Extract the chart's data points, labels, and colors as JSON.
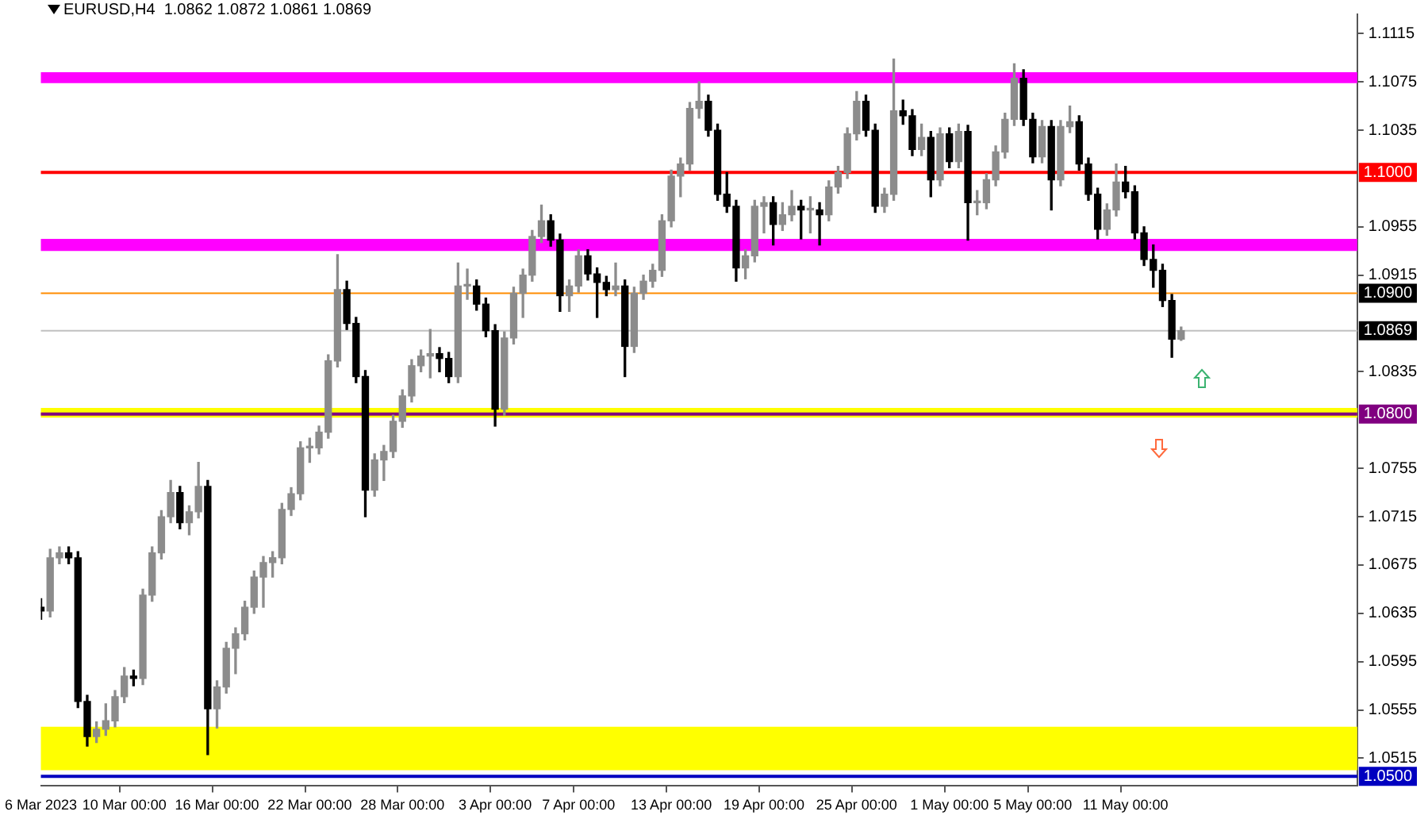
{
  "chart_data": {
    "type": "candlestick",
    "title": "EURUSD,H4  1.0862 1.0872 1.0861 1.0869",
    "categories": [
      "6 Mar 2023",
      null,
      null,
      null,
      null,
      null,
      null,
      null,
      null,
      "10 Mar 00:00",
      null,
      null,
      null,
      null,
      null,
      null,
      null,
      null,
      null,
      "16 Mar 00:00",
      null,
      null,
      null,
      null,
      null,
      null,
      null,
      null,
      null,
      "22 Mar 00:00",
      null,
      null,
      null,
      null,
      null,
      null,
      null,
      null,
      null,
      "28 Mar 00:00",
      null,
      null,
      null,
      null,
      null,
      null,
      null,
      null,
      null,
      "3 Apr 00:00",
      null,
      null,
      null,
      null,
      null,
      null,
      null,
      null,
      "7 Apr 00:00",
      null,
      null,
      null,
      null,
      null,
      null,
      null,
      null,
      null,
      "13 Apr 00:00",
      null,
      null,
      null,
      null,
      null,
      null,
      null,
      null,
      null,
      "19 Apr 00:00",
      null,
      null,
      null,
      null,
      null,
      null,
      null,
      null,
      null,
      "25 Apr 00:00",
      null,
      null,
      null,
      null,
      null,
      null,
      null,
      null,
      null,
      "1 May 00:00",
      null,
      null,
      null,
      null,
      null,
      null,
      null,
      null,
      "5 May 00:00",
      null,
      null,
      null,
      null,
      null,
      null,
      null,
      null,
      null,
      "11 May 00:00",
      null,
      null,
      null,
      null,
      null,
      null,
      null,
      null,
      null,
      null,
      null,
      null,
      null,
      null,
      null,
      null,
      null,
      null,
      null,
      null,
      null,
      null,
      null,
      null,
      null
    ],
    "ohlc": [
      [
        1.064,
        1.0647,
        1.063,
        1.0637
      ],
      [
        1.0637,
        1.0688,
        1.0632,
        1.0681
      ],
      [
        1.0681,
        1.069,
        1.0676,
        1.0685
      ],
      [
        1.0685,
        1.069,
        1.0676,
        1.0681
      ],
      [
        1.0681,
        1.0686,
        1.0557,
        1.0562
      ],
      [
        1.0562,
        1.0567,
        1.0525,
        1.0533
      ],
      [
        1.0533,
        1.0545,
        1.0528,
        1.0539
      ],
      [
        1.0539,
        1.056,
        1.0534,
        1.0546
      ],
      [
        1.0546,
        1.0571,
        1.0541,
        1.0566
      ],
      [
        1.0566,
        1.059,
        1.0561,
        1.0583
      ],
      [
        1.0583,
        1.0588,
        1.0575,
        1.0581
      ],
      [
        1.0581,
        1.0655,
        1.0576,
        1.065
      ],
      [
        1.065,
        1.069,
        1.0645,
        1.0685
      ],
      [
        1.0685,
        1.072,
        1.068,
        1.0715
      ],
      [
        1.0715,
        1.0745,
        1.071,
        1.0735
      ],
      [
        1.0735,
        1.074,
        1.0705,
        1.071
      ],
      [
        1.071,
        1.0724,
        1.07,
        1.0719
      ],
      [
        1.0719,
        1.076,
        1.0714,
        1.074
      ],
      [
        1.074,
        1.0745,
        1.0518,
        1.0556
      ],
      [
        1.0556,
        1.0579,
        1.054,
        1.0574
      ],
      [
        1.0574,
        1.0611,
        1.0569,
        1.0606
      ],
      [
        1.0606,
        1.0623,
        1.0585,
        1.0618
      ],
      [
        1.0618,
        1.0645,
        1.0613,
        1.064
      ],
      [
        1.064,
        1.067,
        1.0635,
        1.0665
      ],
      [
        1.0665,
        1.0682,
        1.064,
        1.0677
      ],
      [
        1.0677,
        1.0686,
        1.0665,
        1.0681
      ],
      [
        1.0681,
        1.0726,
        1.0676,
        1.0721
      ],
      [
        1.0721,
        1.0739,
        1.0716,
        1.0734
      ],
      [
        1.0734,
        1.0777,
        1.0729,
        1.0772
      ],
      [
        1.0772,
        1.078,
        1.076,
        1.0772
      ],
      [
        1.0772,
        1.079,
        1.0767,
        1.0785
      ],
      [
        1.0785,
        1.0849,
        1.078,
        1.0844
      ],
      [
        1.0844,
        1.0932,
        1.0839,
        1.0903
      ],
      [
        1.0903,
        1.091,
        1.087,
        1.0875
      ],
      [
        1.0875,
        1.088,
        1.0826,
        1.0831
      ],
      [
        1.0831,
        1.0836,
        1.0715,
        1.0737
      ],
      [
        1.0737,
        1.0767,
        1.0732,
        1.0762
      ],
      [
        1.0762,
        1.0774,
        1.0745,
        1.0769
      ],
      [
        1.0769,
        1.0799,
        1.0764,
        1.0794
      ],
      [
        1.0794,
        1.082,
        1.0789,
        1.0815
      ],
      [
        1.0815,
        1.0845,
        1.081,
        1.084
      ],
      [
        1.084,
        1.0853,
        1.0835,
        1.0848
      ],
      [
        1.0848,
        1.087,
        1.083,
        1.085
      ],
      [
        1.085,
        1.0855,
        1.0835,
        1.0846
      ],
      [
        1.0846,
        1.0851,
        1.0826,
        1.0831
      ],
      [
        1.0831,
        1.0925,
        1.0826,
        1.0906
      ],
      [
        1.0906,
        1.092,
        1.0895,
        1.0906
      ],
      [
        1.0906,
        1.0911,
        1.0886,
        1.0891
      ],
      [
        1.0891,
        1.0896,
        1.0864,
        1.0869
      ],
      [
        1.0869,
        1.0874,
        1.079,
        1.0804
      ],
      [
        1.0804,
        1.0868,
        1.0799,
        1.0863
      ],
      [
        1.0863,
        1.0905,
        1.0858,
        1.09
      ],
      [
        1.09,
        1.092,
        1.088,
        1.0915
      ],
      [
        1.0915,
        1.0952,
        1.091,
        1.0947
      ],
      [
        1.0947,
        1.0973,
        1.0942,
        1.096
      ],
      [
        1.096,
        1.0965,
        1.0939,
        1.0944
      ],
      [
        1.0944,
        1.0949,
        1.0885,
        1.0898
      ],
      [
        1.0898,
        1.0911,
        1.0885,
        1.0906
      ],
      [
        1.0906,
        1.0936,
        1.0901,
        1.0931
      ],
      [
        1.0931,
        1.0936,
        1.0911,
        1.0916
      ],
      [
        1.0916,
        1.0921,
        1.088,
        1.0909
      ],
      [
        1.0909,
        1.0914,
        1.0898,
        1.0903
      ],
      [
        1.0903,
        1.0925,
        1.0898,
        1.0906
      ],
      [
        1.0906,
        1.0911,
        1.0831,
        1.0856
      ],
      [
        1.0856,
        1.0905,
        1.0851,
        1.09
      ],
      [
        1.09,
        1.0915,
        1.0895,
        1.091
      ],
      [
        1.091,
        1.0924,
        1.0905,
        1.0919
      ],
      [
        1.0919,
        1.0965,
        1.0914,
        1.096
      ],
      [
        1.096,
        1.1002,
        1.0955,
        1.0997
      ],
      [
        1.0997,
        1.1012,
        1.098,
        1.1007
      ],
      [
        1.1007,
        1.1058,
        1.1002,
        1.1053
      ],
      [
        1.1053,
        1.1075,
        1.1045,
        1.1059
      ],
      [
        1.1059,
        1.1064,
        1.103,
        1.1035
      ],
      [
        1.1035,
        1.104,
        1.0977,
        1.0982
      ],
      [
        1.0982,
        1.1,
        1.0967,
        1.0972
      ],
      [
        1.0972,
        1.0977,
        1.091,
        1.0921
      ],
      [
        1.0921,
        1.0936,
        1.0912,
        1.0931
      ],
      [
        1.0931,
        1.0977,
        1.0926,
        1.0972
      ],
      [
        1.0972,
        1.098,
        1.095,
        1.0975
      ],
      [
        1.0975,
        1.098,
        1.094,
        1.0957
      ],
      [
        1.0957,
        1.0975,
        1.0952,
        1.0965
      ],
      [
        1.0965,
        1.0985,
        1.096,
        1.0972
      ],
      [
        1.0972,
        1.0977,
        1.0945,
        1.0969
      ],
      [
        1.0969,
        1.098,
        1.095,
        1.0969
      ],
      [
        1.0969,
        1.0975,
        1.094,
        1.0965
      ],
      [
        1.0965,
        1.0993,
        1.096,
        1.0988
      ],
      [
        1.0988,
        1.1005,
        1.0983,
        1.1
      ],
      [
        1.1,
        1.1037,
        1.0995,
        1.1032
      ],
      [
        1.1032,
        1.1067,
        1.1027,
        1.1059
      ],
      [
        1.1059,
        1.1064,
        1.103,
        1.1035
      ],
      [
        1.1035,
        1.104,
        1.0967,
        1.0972
      ],
      [
        1.0972,
        1.0987,
        1.0967,
        1.0982
      ],
      [
        1.0982,
        1.1094,
        1.0977,
        1.1051
      ],
      [
        1.1051,
        1.106,
        1.104,
        1.1047
      ],
      [
        1.1047,
        1.1052,
        1.1014,
        1.1019
      ],
      [
        1.1019,
        1.104,
        1.1014,
        1.1029
      ],
      [
        1.1029,
        1.1034,
        1.098,
        1.0994
      ],
      [
        1.0994,
        1.1037,
        1.0989,
        1.1032
      ],
      [
        1.1032,
        1.1037,
        1.1004,
        1.1009
      ],
      [
        1.1009,
        1.104,
        1.1004,
        1.1034
      ],
      [
        1.1034,
        1.1039,
        1.0944,
        1.0975
      ],
      [
        1.0975,
        1.0985,
        1.0965,
        1.0975
      ],
      [
        1.0975,
        1.0999,
        1.097,
        1.0994
      ],
      [
        1.0994,
        1.1022,
        1.0989,
        1.1017
      ],
      [
        1.1017,
        1.1049,
        1.1012,
        1.1044
      ],
      [
        1.1044,
        1.109,
        1.1039,
        1.1078
      ],
      [
        1.1078,
        1.1085,
        1.1039,
        1.1044
      ],
      [
        1.1044,
        1.1049,
        1.1008,
        1.1013
      ],
      [
        1.1013,
        1.1043,
        1.1008,
        1.1038
      ],
      [
        1.1038,
        1.1043,
        1.0969,
        1.0994
      ],
      [
        1.0994,
        1.1043,
        1.0989,
        1.1038
      ],
      [
        1.1038,
        1.1055,
        1.1033,
        1.1042
      ],
      [
        1.1042,
        1.1047,
        1.1002,
        1.1007
      ],
      [
        1.1007,
        1.1012,
        1.0977,
        1.0982
      ],
      [
        1.0982,
        1.0987,
        1.0945,
        1.0953
      ],
      [
        1.0953,
        1.0974,
        1.0948,
        1.0969
      ],
      [
        1.0969,
        1.1007,
        1.0964,
        1.0992
      ],
      [
        1.0992,
        1.1005,
        1.0979,
        1.0984
      ],
      [
        1.0984,
        1.0989,
        1.0945,
        1.095
      ],
      [
        1.095,
        1.0955,
        1.0923,
        1.0928
      ],
      [
        1.0928,
        1.094,
        1.0905,
        1.0919
      ],
      [
        1.0919,
        1.0924,
        1.0889,
        1.0894
      ],
      [
        1.0894,
        1.0899,
        1.0847,
        1.0862
      ],
      [
        1.0862,
        1.0872,
        1.0861,
        1.0869
      ],
      null,
      null,
      null,
      null,
      null,
      null,
      null,
      null,
      null,
      null,
      null,
      null,
      null,
      null,
      null,
      null,
      null,
      null,
      null
    ],
    "colors": [
      "#000000",
      "#8c8c8c",
      "#8c8c8c",
      "#000000",
      "#000000",
      "#000000",
      "#8c8c8c",
      "#8c8c8c",
      "#8c8c8c",
      "#8c8c8c",
      "#000000",
      "#8c8c8c",
      "#8c8c8c",
      "#8c8c8c",
      "#8c8c8c",
      "#000000",
      "#8c8c8c",
      "#8c8c8c",
      "#000000",
      "#8c8c8c",
      "#8c8c8c",
      "#8c8c8c",
      "#8c8c8c",
      "#8c8c8c",
      "#8c8c8c",
      "#8c8c8c",
      "#8c8c8c",
      "#8c8c8c",
      "#8c8c8c",
      "#8c8c8c",
      "#8c8c8c",
      "#8c8c8c",
      "#8c8c8c",
      "#000000",
      "#000000",
      "#000000",
      "#8c8c8c",
      "#8c8c8c",
      "#8c8c8c",
      "#8c8c8c",
      "#8c8c8c",
      "#8c8c8c",
      "#8c8c8c",
      "#000000",
      "#000000",
      "#8c8c8c",
      "#8c8c8c",
      "#000000",
      "#000000",
      "#000000",
      "#8c8c8c",
      "#8c8c8c",
      "#8c8c8c",
      "#8c8c8c",
      "#8c8c8c",
      "#000000",
      "#000000",
      "#8c8c8c",
      "#8c8c8c",
      "#000000",
      "#000000",
      "#000000",
      "#8c8c8c",
      "#000000",
      "#8c8c8c",
      "#8c8c8c",
      "#8c8c8c",
      "#8c8c8c",
      "#8c8c8c",
      "#8c8c8c",
      "#8c8c8c",
      "#8c8c8c",
      "#000000",
      "#000000",
      "#000000",
      "#000000",
      "#8c8c8c",
      "#8c8c8c",
      "#8c8c8c",
      "#000000",
      "#8c8c8c",
      "#8c8c8c",
      "#000000",
      "#8c8c8c",
      "#000000",
      "#8c8c8c",
      "#8c8c8c",
      "#8c8c8c",
      "#8c8c8c",
      "#000000",
      "#000000",
      "#8c8c8c",
      "#8c8c8c",
      "#000000",
      "#000000",
      "#8c8c8c",
      "#000000",
      "#8c8c8c",
      "#000000",
      "#8c8c8c",
      "#000000",
      "#8c8c8c",
      "#8c8c8c",
      "#8c8c8c",
      "#8c8c8c",
      "#8c8c8c",
      "#000000",
      "#000000",
      "#8c8c8c",
      "#000000",
      "#8c8c8c",
      "#8c8c8c",
      "#000000",
      "#000000",
      "#000000",
      "#8c8c8c",
      "#8c8c8c",
      "#000000",
      "#000000",
      "#000000",
      "#000000",
      "#000000",
      "#000000",
      "#8c8c8c",
      null,
      null,
      null,
      null,
      null,
      null,
      null,
      null,
      null,
      null,
      null,
      null,
      null,
      null,
      null,
      null,
      null,
      null,
      null
    ],
    "ylim": [
      1.0492,
      1.1131
    ],
    "yticks": [
      1.0515,
      1.0555,
      1.0595,
      1.0635,
      1.0675,
      1.0715,
      1.0755,
      1.0835,
      1.0915,
      1.0955,
      1.1035,
      1.1075,
      1.1115
    ],
    "ref_lines": [
      {
        "axis": "y",
        "value": 1.1,
        "label": "1.1000",
        "color": "#ff0000"
      },
      {
        "axis": "y",
        "value": 1.09,
        "label": "1.0900",
        "color": "#ff8c00"
      },
      {
        "axis": "y",
        "value": 1.0869,
        "label": "1.0869",
        "color": "#c0c0c0"
      },
      {
        "axis": "y",
        "value": 1.08,
        "label": "1.0800",
        "color": "#800080"
      },
      {
        "axis": "y",
        "value": 1.05,
        "label": "1.0500",
        "color": "#0000c0"
      }
    ],
    "bands": [
      {
        "axis": "y",
        "from": 1.1074,
        "to": 1.1083,
        "color": "#ff00ff"
      },
      {
        "axis": "y",
        "from": 1.0935,
        "to": 1.0945,
        "color": "#ff00ff"
      },
      {
        "axis": "y",
        "from": 1.0797,
        "to": 1.0805,
        "color": "#ffff00"
      },
      {
        "axis": "y",
        "from": 1.0505,
        "to": 1.0541,
        "color": "#ffff00"
      }
    ],
    "grid": false,
    "legend": false
  }
}
